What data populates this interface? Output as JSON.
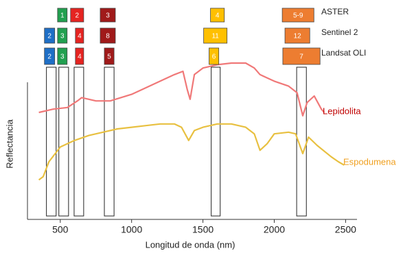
{
  "chart_data": {
    "type": "line",
    "x_label": "Longitud de onda (nm)",
    "y_label": "Reflectancia",
    "xlim": [
      270,
      2580
    ],
    "ylim": [
      0,
      1
    ],
    "xticks": [
      500,
      1000,
      1500,
      2000,
      2500
    ],
    "series": [
      {
        "name": "Lepidolita",
        "color": "#f07878",
        "label_color": "#c00000",
        "x": [
          350,
          450,
          550,
          620,
          650,
          750,
          850,
          1000,
          1100,
          1200,
          1300,
          1360,
          1390,
          1410,
          1440,
          1500,
          1600,
          1700,
          1800,
          1860,
          1900,
          1950,
          2000,
          2100,
          2160,
          2200,
          2230,
          2280,
          2330,
          2350
        ],
        "values": [
          0.65,
          0.67,
          0.68,
          0.72,
          0.74,
          0.72,
          0.72,
          0.76,
          0.8,
          0.84,
          0.88,
          0.9,
          0.79,
          0.73,
          0.88,
          0.92,
          0.94,
          0.95,
          0.95,
          0.92,
          0.88,
          0.86,
          0.84,
          0.81,
          0.77,
          0.63,
          0.71,
          0.75,
          0.67,
          0.65
        ]
      },
      {
        "name": "Espodumena",
        "color": "#e8c040",
        "label_color": "#f0a020",
        "x": [
          350,
          380,
          420,
          500,
          600,
          700,
          800,
          900,
          1000,
          1100,
          1200,
          1300,
          1350,
          1400,
          1440,
          1500,
          1600,
          1700,
          1800,
          1860,
          1900,
          1950,
          2000,
          2100,
          2150,
          2200,
          2240,
          2300,
          2400,
          2450,
          2490
        ],
        "values": [
          0.24,
          0.26,
          0.35,
          0.44,
          0.48,
          0.51,
          0.53,
          0.55,
          0.56,
          0.57,
          0.58,
          0.58,
          0.56,
          0.48,
          0.54,
          0.56,
          0.58,
          0.58,
          0.56,
          0.52,
          0.42,
          0.46,
          0.52,
          0.53,
          0.52,
          0.4,
          0.5,
          0.45,
          0.38,
          0.35,
          0.33
        ]
      }
    ],
    "windows": [
      [
        403,
        471
      ],
      [
        490,
        558
      ],
      [
        597,
        664
      ],
      [
        809,
        877
      ],
      [
        1558,
        1621
      ],
      [
        2157,
        2225
      ]
    ],
    "sensors": [
      {
        "name": "ASTER",
        "bands": [
          {
            "label": "1",
            "color": "#22a050",
            "range": [
              481,
              548
            ]
          },
          {
            "label": "2",
            "color": "#e52421",
            "range": [
              572,
              664
            ]
          },
          {
            "label": "3",
            "color": "#a01a1a",
            "range": [
              780,
              886
            ]
          },
          {
            "label": "4",
            "color": "#ffc000",
            "range": [
              1553,
              1650
            ]
          },
          {
            "label": "5-9",
            "color": "#ed7d31",
            "range": [
              2056,
              2278
            ]
          }
        ]
      },
      {
        "name": "Sentinel 2",
        "bands": [
          {
            "label": "2",
            "color": "#1f6fc6",
            "range": [
              389,
              461
            ]
          },
          {
            "label": "3",
            "color": "#22a050",
            "range": [
              481,
              548
            ]
          },
          {
            "label": "4",
            "color": "#e52421",
            "range": [
              606,
              664
            ]
          },
          {
            "label": "8",
            "color": "#a01a1a",
            "range": [
              780,
              886
            ]
          },
          {
            "label": "11",
            "color": "#ffc000",
            "range": [
              1505,
              1669
            ]
          },
          {
            "label": "12",
            "color": "#ed7d31",
            "range": [
              2075,
              2249
            ]
          }
        ]
      },
      {
        "name": "Landsat OLI",
        "bands": [
          {
            "label": "2",
            "color": "#1f6fc6",
            "range": [
              389,
              461
            ]
          },
          {
            "label": "3",
            "color": "#22a050",
            "range": [
              481,
              548
            ]
          },
          {
            "label": "4",
            "color": "#e52421",
            "range": [
              606,
              664
            ]
          },
          {
            "label": "5",
            "color": "#a01a1a",
            "range": [
              809,
              877
            ]
          },
          {
            "label": "6",
            "color": "#ffc000",
            "range": [
              1543,
              1611
            ]
          },
          {
            "label": "7",
            "color": "#ed7d31",
            "range": [
              2060,
              2321
            ]
          }
        ]
      }
    ]
  }
}
